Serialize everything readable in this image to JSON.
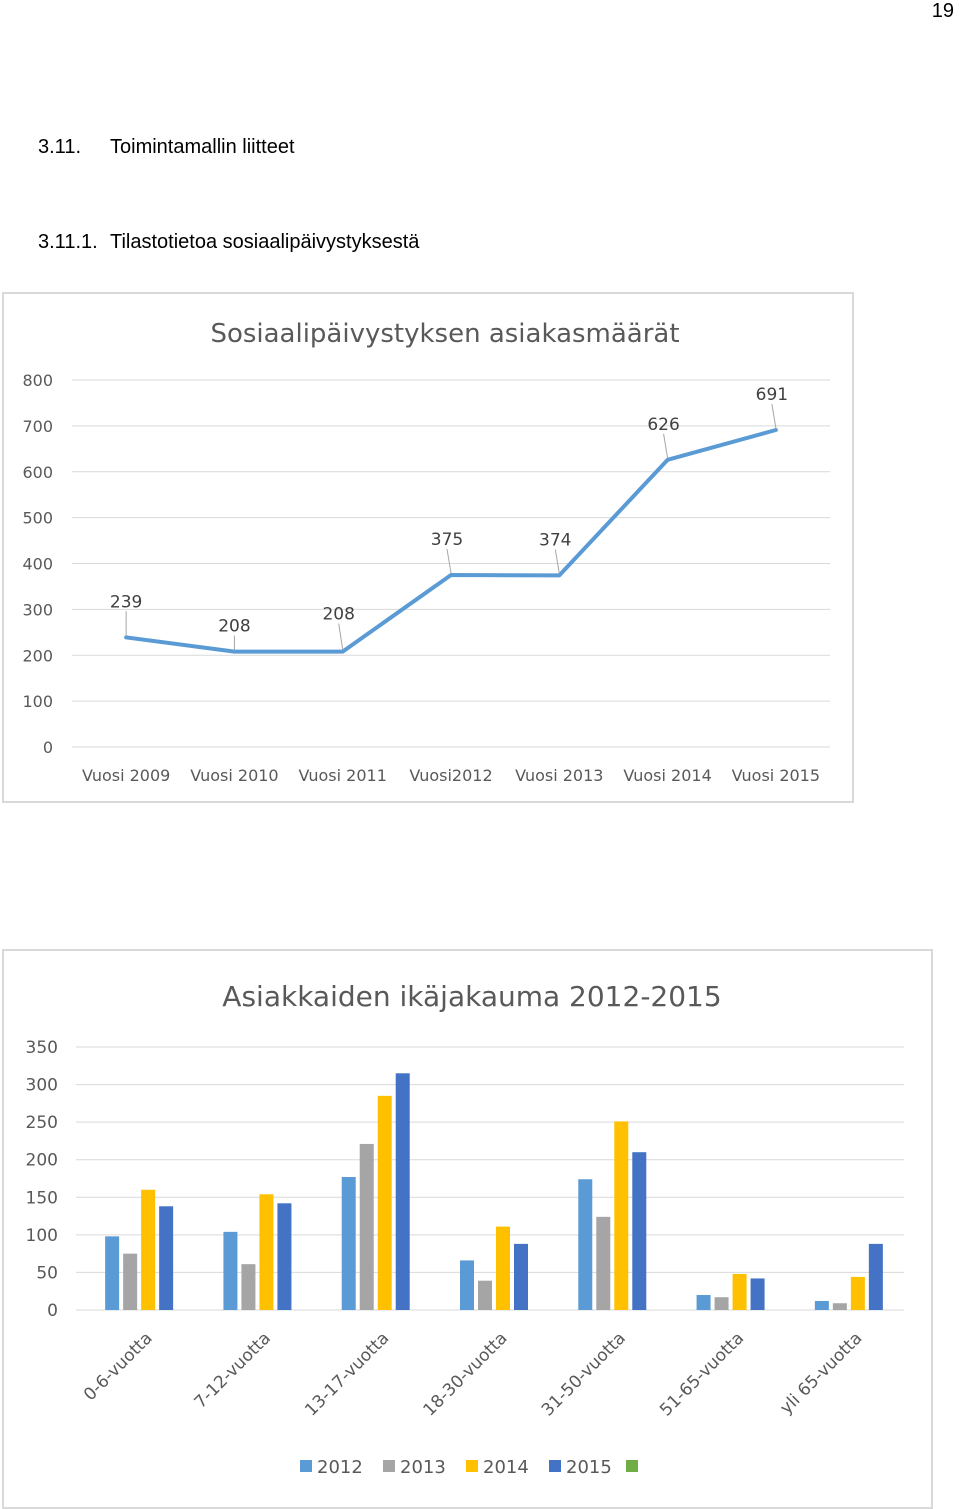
{
  "page_number": "19",
  "section": {
    "number": "3.11.",
    "title": "Toimintamallin liitteet"
  },
  "subsection": {
    "number": "3.11.1.",
    "title": "Tilastotietoa sosiaalipäivystyksestä"
  },
  "colors": {
    "line": "#5b9bd5",
    "s2012": "#5b9bd5",
    "s2013": "#a5a5a5",
    "s2014": "#ffc000",
    "s2015": "#4472c4",
    "extra_legend": "#70ad47",
    "grid": "#d9d9d9",
    "axis_text": "#595959"
  },
  "chart_data": [
    {
      "type": "line",
      "title": "Sosiaalipäivystyksen asiakasmäärät",
      "categories": [
        "Vuosi 2009",
        "Vuosi 2010",
        "Vuosi 2011",
        "Vuosi2012",
        "Vuosi 2013",
        "Vuosi 2014",
        "Vuosi 2015"
      ],
      "values": [
        239,
        208,
        208,
        375,
        374,
        626,
        691
      ],
      "data_labels": [
        "239",
        "208",
        "208",
        "375",
        "374",
        "626",
        "691"
      ],
      "ylim": [
        0,
        800
      ],
      "yticks": [
        "0",
        "100",
        "200",
        "300",
        "400",
        "500",
        "600",
        "700",
        "800"
      ],
      "grid": true
    },
    {
      "type": "bar",
      "title": "Asiakkaiden ikäjakauma 2012-2015",
      "categories": [
        "0-6-vuotta",
        "7-12-vuotta",
        "13-17-vuotta",
        "18-30-vuotta",
        "31-50-vuotta",
        "51-65-vuotta",
        "yli 65-vuotta"
      ],
      "series": [
        {
          "name": "2012",
          "color": "#5b9bd5",
          "values": [
            98,
            104,
            177,
            66,
            174,
            20,
            12
          ]
        },
        {
          "name": "2013",
          "color": "#a5a5a5",
          "values": [
            75,
            61,
            221,
            39,
            124,
            17,
            9
          ]
        },
        {
          "name": "2014",
          "color": "#ffc000",
          "values": [
            160,
            154,
            285,
            111,
            251,
            48,
            44
          ]
        },
        {
          "name": "2015",
          "color": "#4472c4",
          "values": [
            138,
            142,
            315,
            88,
            210,
            42,
            88
          ]
        }
      ],
      "legend_extra_color": "#70ad47",
      "ylim": [
        0,
        350
      ],
      "yticks": [
        "0",
        "50",
        "100",
        "150",
        "200",
        "250",
        "300",
        "350"
      ],
      "legend_position": "bottom",
      "grid": true
    }
  ]
}
